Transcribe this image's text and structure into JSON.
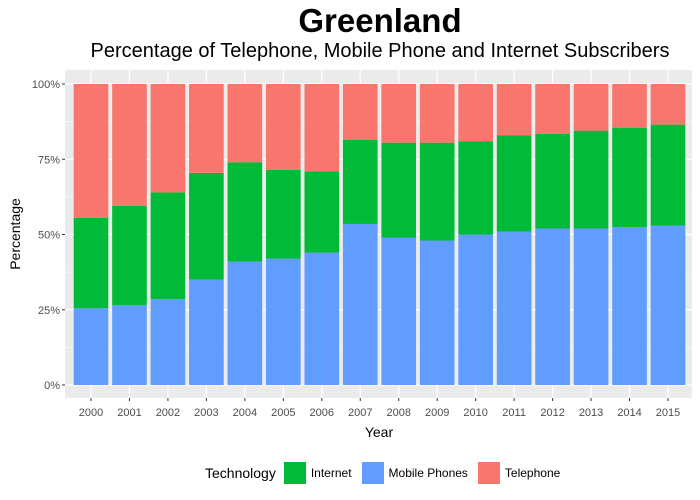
{
  "chart_data": {
    "type": "bar",
    "stacked": true,
    "title": "Greenland",
    "subtitle": "Percentage of Telephone, Mobile Phone and Internet Subscribers",
    "xlabel": "Year",
    "ylabel": "Percentage",
    "ylim": [
      0,
      100
    ],
    "y_ticks": [
      "0%",
      "25%",
      "50%",
      "75%",
      "100%"
    ],
    "y_tick_values": [
      0,
      25,
      50,
      75,
      100
    ],
    "categories": [
      "2000",
      "2001",
      "2002",
      "2003",
      "2004",
      "2005",
      "2006",
      "2007",
      "2008",
      "2009",
      "2010",
      "2011",
      "2012",
      "2013",
      "2014",
      "2015"
    ],
    "legend_title": "Technology",
    "legend_position": "bottom",
    "series": [
      {
        "name": "Mobile Phones",
        "color": "#619CFF",
        "values": [
          25.5,
          26.5,
          28.5,
          35,
          41,
          42,
          44,
          53.5,
          49,
          48,
          50,
          51,
          52,
          52,
          52.5,
          53
        ]
      },
      {
        "name": "Internet",
        "color": "#00BA38",
        "values": [
          30,
          33,
          35.5,
          35.5,
          33,
          29.5,
          27,
          28,
          31.5,
          32.5,
          31,
          32,
          31.5,
          32.5,
          33,
          33.5
        ]
      },
      {
        "name": "Telephone",
        "color": "#F8766D",
        "values": [
          44.5,
          40.5,
          36,
          29.5,
          26,
          28.5,
          29,
          18.5,
          19.5,
          19.5,
          19,
          17,
          16.5,
          15.5,
          14.5,
          13.5
        ]
      }
    ],
    "legend_order": [
      "Internet",
      "Mobile Phones",
      "Telephone"
    ]
  }
}
